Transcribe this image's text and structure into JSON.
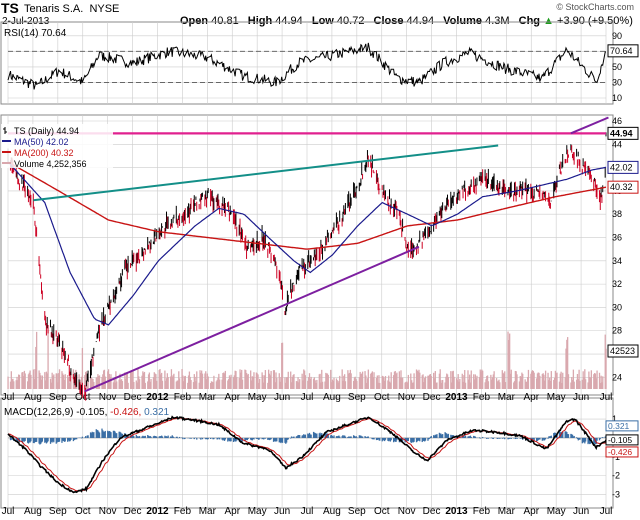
{
  "header": {
    "symbol": "TS",
    "company": "Tenaris S.A.",
    "exchange": "NYSE",
    "date": "2-Jul-2013",
    "watermark": "© StockCharts.com",
    "quote_labels": [
      "Open",
      "High",
      "Low",
      "Close",
      "Volume",
      "Chg"
    ],
    "quote_values": [
      "40.81",
      "44.94",
      "40.72",
      "44.94",
      "4.3M",
      "+3.90 (+9.50%)"
    ],
    "chg_arrow": "▲"
  },
  "colors": {
    "price_up": "#000000",
    "price_down": "#cc0022",
    "ma50": "#1a1a8c",
    "ma200": "#c81414",
    "resistance": "#e0208f",
    "teal_trend": "#138f88",
    "purple_trend": "#7d1fa0",
    "volume": "#d9a8ae",
    "macd_hist": "#3a6ea5",
    "grid": "#cccccc"
  },
  "chart_data": {
    "type": "line",
    "title": "TS (Daily) 44.94",
    "x_ticks": [
      "Jul",
      "Aug",
      "Sep",
      "Oct",
      "Nov",
      "Dec",
      "2012",
      "Feb",
      "Mar",
      "Apr",
      "May",
      "Jun",
      "Jul",
      "Aug",
      "Sep",
      "Oct",
      "Nov",
      "Dec",
      "2013",
      "Feb",
      "Mar",
      "Apr",
      "May",
      "Jun",
      "Jul"
    ],
    "x_tick_range": [
      "Jul 2011",
      "Jul 2013"
    ],
    "price": {
      "ylim": [
        23,
        46
      ],
      "yticks": [
        24,
        26,
        28,
        30,
        32,
        34,
        36,
        38,
        40,
        42,
        44,
        46
      ],
      "tags": [
        "44.94",
        "42.02",
        "40.32"
      ],
      "volume_tag": "42523",
      "legend": [
        {
          "text": "TS (Daily) 44.94",
          "marker": "bar"
        },
        {
          "text": "MA(50) 42.02",
          "color": "#1a1a8c"
        },
        {
          "text": "MA(200) 40.32",
          "color": "#c81414"
        },
        {
          "text": "Volume 4,252,356",
          "color": "#d9a8ae"
        }
      ],
      "anchors": [
        [
          "2011-07-01",
          42.5
        ],
        [
          "2011-08-01",
          39
        ],
        [
          "2011-08-15",
          29
        ],
        [
          "2011-09-01",
          27
        ],
        [
          "2011-09-20",
          24
        ],
        [
          "2011-10-03",
          22.7
        ],
        [
          "2011-10-20",
          28
        ],
        [
          "2011-11-01",
          30
        ],
        [
          "2011-11-20",
          33
        ],
        [
          "2011-12-15",
          35
        ],
        [
          "2012-01-10",
          37
        ],
        [
          "2012-02-01",
          38
        ],
        [
          "2012-03-01",
          39.6
        ],
        [
          "2012-04-01",
          38
        ],
        [
          "2012-04-20",
          35
        ],
        [
          "2012-05-10",
          36
        ],
        [
          "2012-05-25",
          33.5
        ],
        [
          "2012-06-04",
          30
        ],
        [
          "2012-06-20",
          33
        ],
        [
          "2012-07-15",
          34.5
        ],
        [
          "2012-08-10",
          37.5
        ],
        [
          "2012-09-01",
          40.5
        ],
        [
          "2012-09-14",
          43
        ],
        [
          "2012-10-01",
          40
        ],
        [
          "2012-10-20",
          38
        ],
        [
          "2012-11-01",
          35
        ],
        [
          "2012-11-15",
          35.5
        ],
        [
          "2012-12-01",
          37
        ],
        [
          "2012-12-20",
          39
        ],
        [
          "2013-01-10",
          40
        ],
        [
          "2013-02-01",
          41
        ],
        [
          "2013-02-25",
          40
        ],
        [
          "2013-03-20",
          40
        ],
        [
          "2013-04-10",
          40
        ],
        [
          "2013-04-25",
          39
        ],
        [
          "2013-05-10",
          42.5
        ],
        [
          "2013-05-20",
          43.5
        ],
        [
          "2013-06-05",
          42
        ],
        [
          "2013-06-20",
          40.5
        ],
        [
          "2013-06-25",
          39.2
        ],
        [
          "2013-07-01",
          41
        ],
        [
          "2013-07-02",
          44.94
        ]
      ],
      "ma50": [
        [
          "2011-07-01",
          42.5
        ],
        [
          "2011-08-15",
          39
        ],
        [
          "2011-09-15",
          33
        ],
        [
          "2011-10-15",
          29
        ],
        [
          "2011-11-01",
          28.5
        ],
        [
          "2011-12-01",
          31
        ],
        [
          "2012-01-01",
          34
        ],
        [
          "2012-02-15",
          37
        ],
        [
          "2012-03-15",
          38.5
        ],
        [
          "2012-04-15",
          38
        ],
        [
          "2012-05-15",
          36
        ],
        [
          "2012-06-15",
          34
        ],
        [
          "2012-07-05",
          33
        ],
        [
          "2012-08-01",
          34.5
        ],
        [
          "2012-09-01",
          37
        ],
        [
          "2012-10-01",
          39
        ],
        [
          "2012-11-01",
          38
        ],
        [
          "2012-12-01",
          37
        ],
        [
          "2013-01-01",
          38
        ],
        [
          "2013-02-01",
          39.5
        ],
        [
          "2013-03-15",
          40
        ],
        [
          "2013-04-15",
          40.5
        ],
        [
          "2013-05-15",
          41
        ],
        [
          "2013-06-15",
          41.8
        ],
        [
          "2013-07-02",
          42.02
        ]
      ],
      "ma200": [
        [
          "2011-07-01",
          42.5
        ],
        [
          "2011-09-01",
          40
        ],
        [
          "2011-11-01",
          37.5
        ],
        [
          "2012-01-01",
          36.5
        ],
        [
          "2012-03-01",
          36
        ],
        [
          "2012-05-01",
          35.5
        ],
        [
          "2012-07-01",
          35
        ],
        [
          "2012-09-01",
          35.5
        ],
        [
          "2012-11-01",
          37
        ],
        [
          "2013-01-01",
          37.5
        ],
        [
          "2013-03-01",
          38.5
        ],
        [
          "2013-05-01",
          39.5
        ],
        [
          "2013-07-02",
          40.32
        ]
      ],
      "resistance": 44.94,
      "teal_trend": [
        [
          "2011-08-01",
          39.2
        ],
        [
          "2013-02-20",
          43.9
        ]
      ],
      "purple_trend": [
        [
          "2011-10-03",
          22.8
        ],
        [
          "2012-11-15",
          35.2
        ]
      ],
      "purple_trend_2": [
        [
          "2013-05-20",
          44.94
        ],
        [
          "2013-07-05",
          46.3
        ]
      ],
      "volume_spikes": [
        "2011-08-05",
        "2011-08-20",
        "2011-10-01",
        "2012-06-01",
        "2013-03-05",
        "2013-05-15",
        "2013-07-02"
      ]
    },
    "rsi": {
      "label": "RSI(14) 70.64",
      "value_tag": "70.64",
      "ylim": [
        10,
        100
      ],
      "yticks": [
        10,
        30,
        50,
        70,
        90
      ],
      "anchors": [
        [
          "2011-07-01",
          40
        ],
        [
          "2011-08-05",
          25
        ],
        [
          "2011-09-01",
          45
        ],
        [
          "2011-10-01",
          30
        ],
        [
          "2011-10-20",
          65
        ],
        [
          "2011-12-01",
          55
        ],
        [
          "2012-01-15",
          70
        ],
        [
          "2012-03-01",
          62
        ],
        [
          "2012-04-15",
          38
        ],
        [
          "2012-05-25",
          30
        ],
        [
          "2012-06-20",
          55
        ],
        [
          "2012-08-15",
          68
        ],
        [
          "2012-09-14",
          75
        ],
        [
          "2012-10-20",
          35
        ],
        [
          "2012-11-15",
          30
        ],
        [
          "2012-12-15",
          55
        ],
        [
          "2013-01-15",
          68
        ],
        [
          "2013-03-01",
          48
        ],
        [
          "2013-04-15",
          35
        ],
        [
          "2013-05-15",
          72
        ],
        [
          "2013-06-20",
          32
        ],
        [
          "2013-07-02",
          70.64
        ]
      ]
    },
    "macd": {
      "label": "MACD(12,26,9) -0.105, -0.426, 0.321",
      "label_parts": [
        "MACD(12,26,9)",
        "-0.105,",
        "-0.426,",
        "0.321"
      ],
      "tags": [
        "0.321",
        "-0.105",
        "-0.426"
      ],
      "ylim": [
        -3.4,
        1.8
      ],
      "yticks": [
        -3,
        -2,
        -1,
        0,
        1
      ],
      "anchors": [
        [
          "2011-07-01",
          0.2
        ],
        [
          "2011-07-20",
          -0.5
        ],
        [
          "2011-08-10",
          -1.5
        ],
        [
          "2011-09-01",
          -2.4
        ],
        [
          "2011-09-20",
          -2.9
        ],
        [
          "2011-10-05",
          -2.7
        ],
        [
          "2011-10-25",
          -1.2
        ],
        [
          "2011-11-15",
          0
        ],
        [
          "2011-12-15",
          0.5
        ],
        [
          "2012-01-20",
          1.1
        ],
        [
          "2012-02-20",
          0.9
        ],
        [
          "2012-03-15",
          0.7
        ],
        [
          "2012-04-15",
          -0.3
        ],
        [
          "2012-05-15",
          -0.6
        ],
        [
          "2012-06-05",
          -1.6
        ],
        [
          "2012-06-25",
          -1
        ],
        [
          "2012-07-25",
          0.3
        ],
        [
          "2012-08-25",
          0.8
        ],
        [
          "2012-09-15",
          1.1
        ],
        [
          "2012-10-15",
          0.2
        ],
        [
          "2012-11-10",
          -0.8
        ],
        [
          "2012-11-25",
          -1.2
        ],
        [
          "2012-12-20",
          -0.1
        ],
        [
          "2013-01-20",
          0.4
        ],
        [
          "2013-02-20",
          0.3
        ],
        [
          "2013-03-20",
          0.1
        ],
        [
          "2013-04-20",
          -0.6
        ],
        [
          "2013-05-15",
          0.9
        ],
        [
          "2013-05-25",
          1
        ],
        [
          "2013-06-20",
          -0.5
        ],
        [
          "2013-07-02",
          -0.105
        ]
      ]
    }
  }
}
